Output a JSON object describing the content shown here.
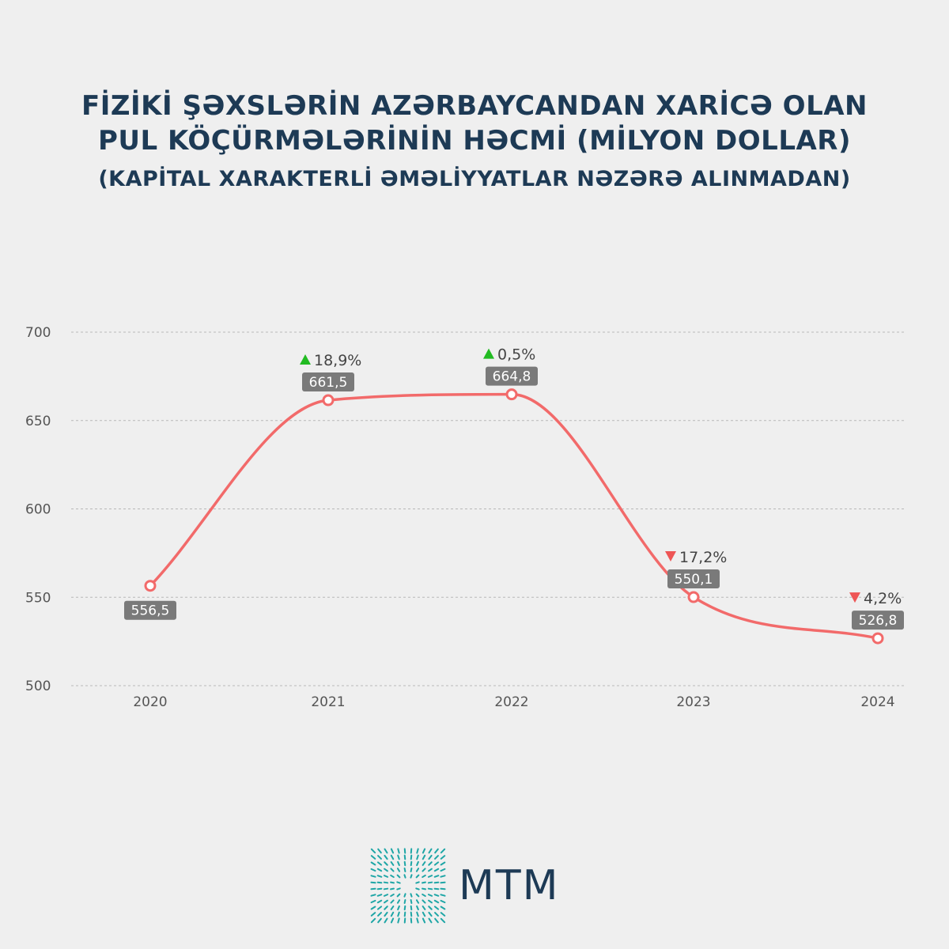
{
  "title": "FİZİKİ ŞƏXSLƏRİN AZƏRBAYCANDAN XARİCƏ OLAN PUL KÖÇÜRMƏLƏRİNİN HƏCMİ (MİLYON DOLLAR)",
  "subtitle": "(KAPİTAL XARAKTERLİ ƏMƏLİYYATLAR NƏZƏRƏ ALINMADAN)",
  "brand": "MTM",
  "colors": {
    "line": "#f26a6a",
    "label_bg": "#7a7a7a",
    "up": "#22bb22",
    "down": "#ee5555",
    "title": "#1d3a55",
    "logo": "#1ea6a6"
  },
  "chart_data": {
    "type": "line",
    "categories": [
      "2020",
      "2021",
      "2022",
      "2023",
      "2024"
    ],
    "values": [
      556.5,
      661.5,
      664.8,
      550.1,
      526.8
    ],
    "value_labels": [
      "556,5",
      "661,5",
      "664,8",
      "550,1",
      "526,8"
    ],
    "changes": [
      null,
      {
        "dir": "up",
        "text": "18,9%"
      },
      {
        "dir": "up",
        "text": "0,5%"
      },
      {
        "dir": "down",
        "text": "17,2%"
      },
      {
        "dir": "down",
        "text": "4,2%"
      }
    ],
    "yticks": [
      "500",
      "550",
      "600",
      "650",
      "700"
    ],
    "ylim": [
      500,
      700
    ],
    "grid": true,
    "smooth": true
  }
}
